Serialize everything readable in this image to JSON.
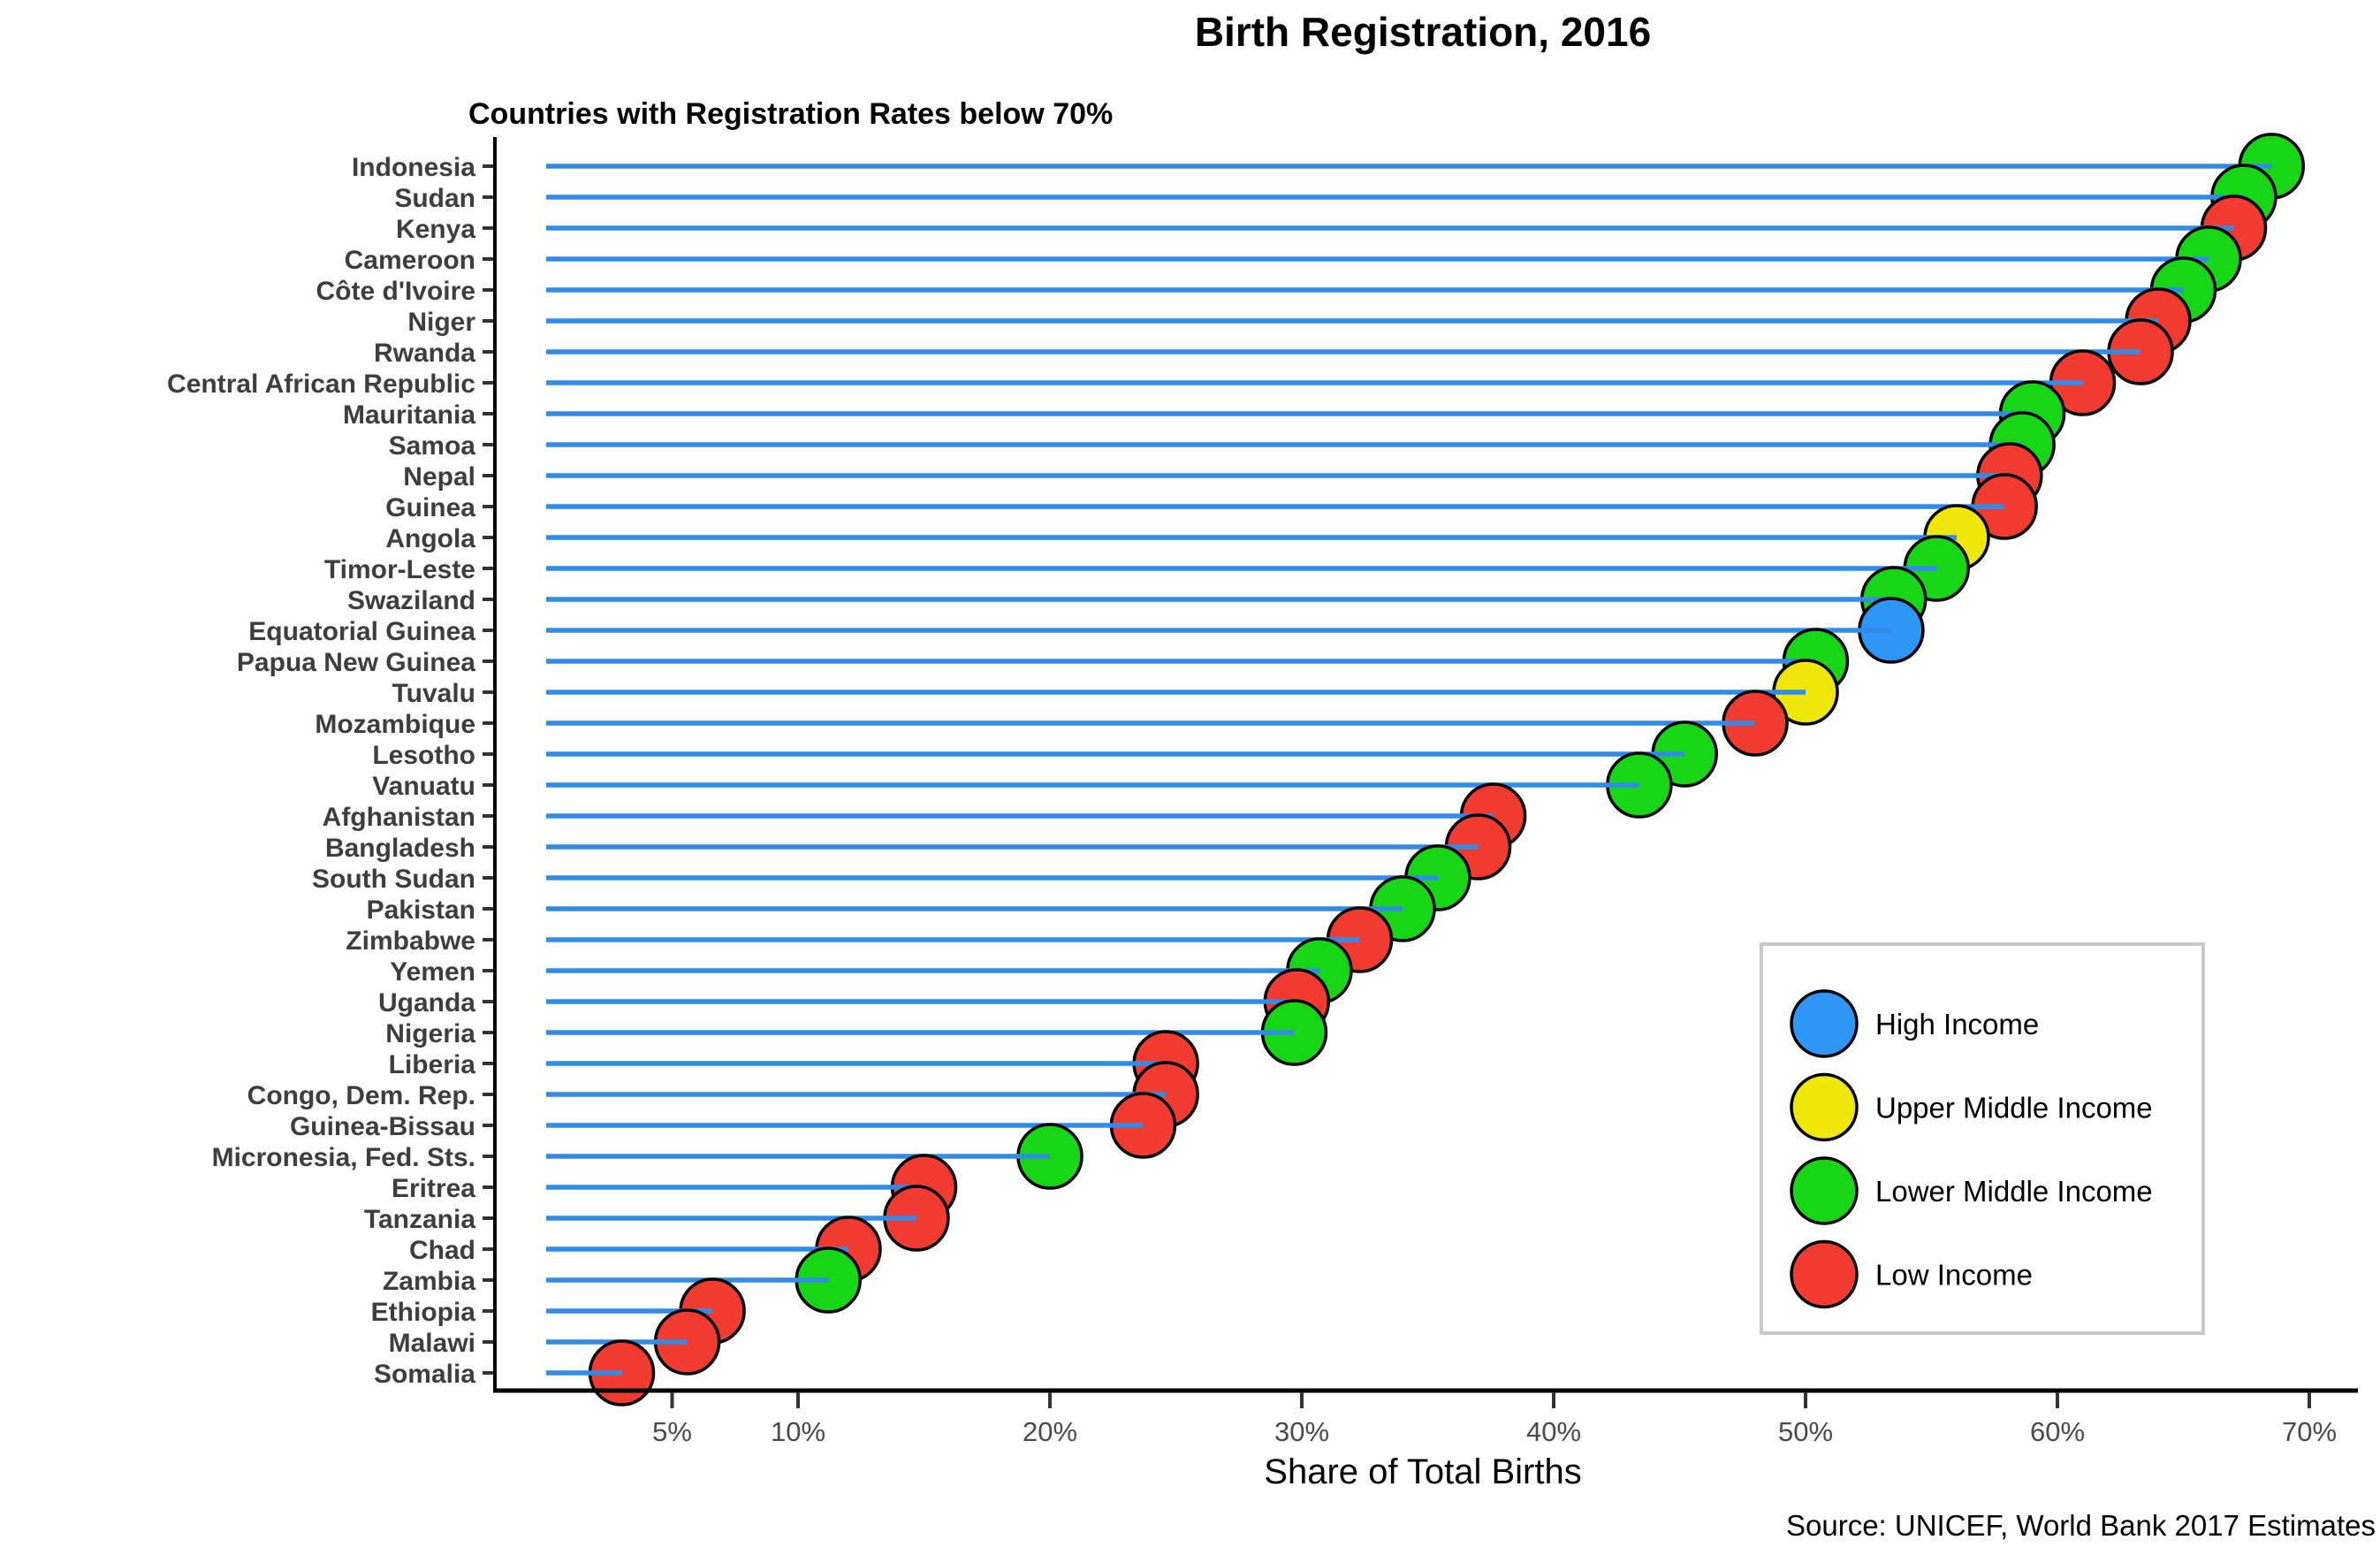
{
  "title": "Birth Registration, 2016",
  "subtitle": "Countries with Registration Rates below 70%",
  "source_note": "Source: UNICEF, World Bank 2017 Estimates",
  "colors": {
    "stem": "#318CE7",
    "high": "#2E96F5",
    "upper_middle": "#EFE60A",
    "lower_middle": "#16D616",
    "low": "#F23B30",
    "axis_line": "#000000",
    "tick_mark": "#333333",
    "country_label": "#3e3e3e",
    "tick_label": "#4a4a4a",
    "legend_border": "#C9C9C9",
    "dot_outline": "#000000"
  },
  "chart_data": {
    "type": "lollipop",
    "title": "Birth Registration, 2016",
    "subtitle": "Countries with Registration Rates below 70%",
    "xlabel": "Share of Total Births",
    "xlim": [
      0,
      72
    ],
    "grid": false,
    "x_ticks": [
      {
        "value": 5,
        "label": "5%"
      },
      {
        "value": 10,
        "label": "10%"
      },
      {
        "value": 20,
        "label": "20%"
      },
      {
        "value": 30,
        "label": "30%"
      },
      {
        "value": 40,
        "label": "40%"
      },
      {
        "value": 50,
        "label": "50%"
      },
      {
        "value": 60,
        "label": "60%"
      },
      {
        "value": 70,
        "label": "70%"
      }
    ],
    "legend": {
      "position": "bottom-right",
      "items": [
        {
          "label": "High Income",
          "key": "high"
        },
        {
          "label": "Upper Middle Income",
          "key": "upper_middle"
        },
        {
          "label": "Lower Middle Income",
          "key": "lower_middle"
        },
        {
          "label": "Low Income",
          "key": "low"
        }
      ]
    },
    "series": [
      {
        "name": "Indonesia",
        "value": 68.5,
        "income": "lower_middle"
      },
      {
        "name": "Sudan",
        "value": 67.4,
        "income": "lower_middle"
      },
      {
        "name": "Kenya",
        "value": 67.0,
        "income": "low"
      },
      {
        "name": "Cameroon",
        "value": 66.0,
        "income": "lower_middle"
      },
      {
        "name": "Côte d'Ivoire",
        "value": 65.0,
        "income": "lower_middle"
      },
      {
        "name": "Niger",
        "value": 64.0,
        "income": "low"
      },
      {
        "name": "Rwanda",
        "value": 63.3,
        "income": "low"
      },
      {
        "name": "Central African Republic",
        "value": 61.0,
        "income": "low"
      },
      {
        "name": "Mauritania",
        "value": 59.0,
        "income": "lower_middle"
      },
      {
        "name": "Samoa",
        "value": 58.6,
        "income": "lower_middle"
      },
      {
        "name": "Nepal",
        "value": 58.1,
        "income": "low"
      },
      {
        "name": "Guinea",
        "value": 57.9,
        "income": "low"
      },
      {
        "name": "Angola",
        "value": 56.0,
        "income": "upper_middle"
      },
      {
        "name": "Timor-Leste",
        "value": 55.2,
        "income": "lower_middle"
      },
      {
        "name": "Swaziland",
        "value": 53.5,
        "income": "lower_middle"
      },
      {
        "name": "Equatorial Guinea",
        "value": 53.4,
        "income": "high"
      },
      {
        "name": "Papua New Guinea",
        "value": 50.4,
        "income": "lower_middle"
      },
      {
        "name": "Tuvalu",
        "value": 50.0,
        "income": "upper_middle"
      },
      {
        "name": "Mozambique",
        "value": 48.0,
        "income": "low"
      },
      {
        "name": "Lesotho",
        "value": 45.2,
        "income": "lower_middle"
      },
      {
        "name": "Vanuatu",
        "value": 43.4,
        "income": "lower_middle"
      },
      {
        "name": "Afghanistan",
        "value": 37.6,
        "income": "low"
      },
      {
        "name": "Bangladesh",
        "value": 37.0,
        "income": "low"
      },
      {
        "name": "South Sudan",
        "value": 35.4,
        "income": "lower_middle"
      },
      {
        "name": "Pakistan",
        "value": 34.0,
        "income": "lower_middle"
      },
      {
        "name": "Zimbabwe",
        "value": 32.3,
        "income": "low"
      },
      {
        "name": "Yemen",
        "value": 30.7,
        "income": "lower_middle"
      },
      {
        "name": "Uganda",
        "value": 29.8,
        "income": "low"
      },
      {
        "name": "Nigeria",
        "value": 29.7,
        "income": "lower_middle"
      },
      {
        "name": "Liberia",
        "value": 24.6,
        "income": "low"
      },
      {
        "name": "Congo, Dem. Rep.",
        "value": 24.6,
        "income": "low"
      },
      {
        "name": "Guinea-Bissau",
        "value": 23.7,
        "income": "low"
      },
      {
        "name": "Micronesia, Fed. Sts.",
        "value": 20.0,
        "income": "lower_middle"
      },
      {
        "name": "Eritrea",
        "value": 15.0,
        "income": "low"
      },
      {
        "name": "Tanzania",
        "value": 14.7,
        "income": "low"
      },
      {
        "name": "Chad",
        "value": 12.0,
        "income": "low"
      },
      {
        "name": "Zambia",
        "value": 11.2,
        "income": "lower_middle"
      },
      {
        "name": "Ethiopia",
        "value": 6.6,
        "income": "low"
      },
      {
        "name": "Malawi",
        "value": 5.6,
        "income": "low"
      },
      {
        "name": "Somalia",
        "value": 3.0,
        "income": "low"
      }
    ]
  }
}
